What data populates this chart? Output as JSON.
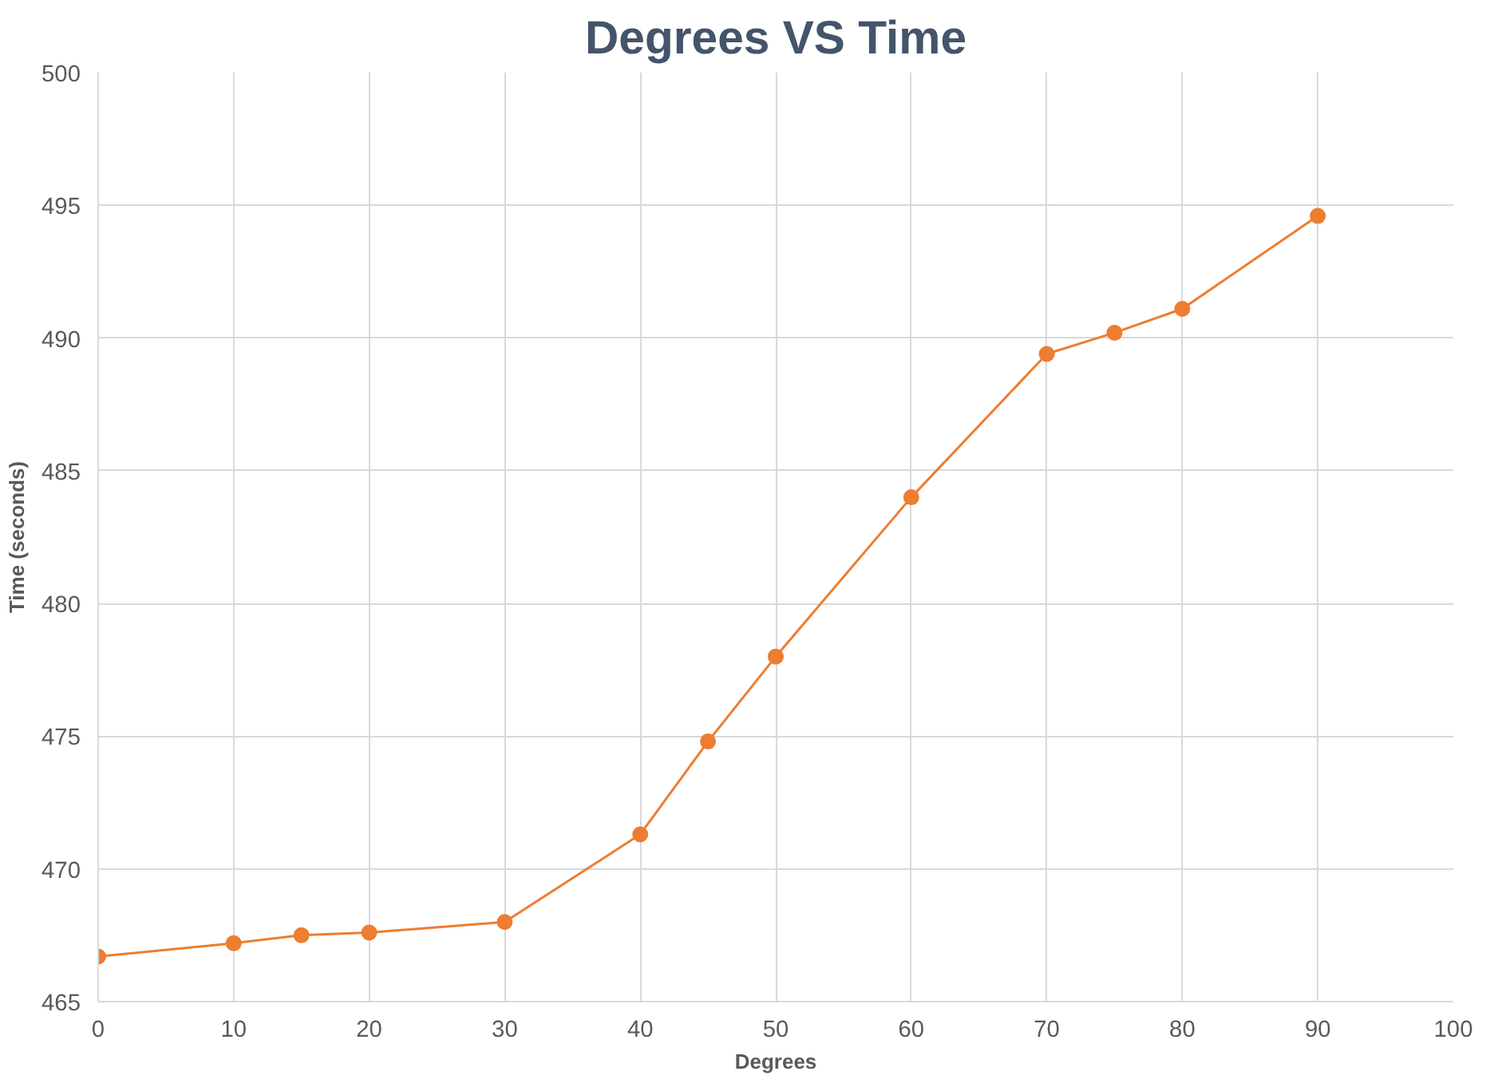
{
  "chart_data": {
    "type": "line",
    "title": "Degrees VS Time",
    "xlabel": "Degrees",
    "ylabel": "Time (seconds)",
    "x": [
      0,
      10,
      15,
      20,
      30,
      40,
      45,
      50,
      60,
      70,
      75,
      80,
      90
    ],
    "series": [
      {
        "color": "#ed7d31",
        "values": [
          466.7,
          467.2,
          467.5,
          467.6,
          468.0,
          471.3,
          474.8,
          478.0,
          484.0,
          489.4,
          490.2,
          491.1,
          494.6
        ]
      }
    ],
    "xlim": [
      0,
      100
    ],
    "xticks": [
      0,
      10,
      20,
      30,
      40,
      50,
      60,
      70,
      80,
      90,
      100
    ],
    "ylim": [
      465,
      500
    ],
    "yticks": [
      465,
      470,
      475,
      480,
      485,
      490,
      495,
      500
    ],
    "grid": true,
    "marker": "circle",
    "line_style": "solid"
  }
}
